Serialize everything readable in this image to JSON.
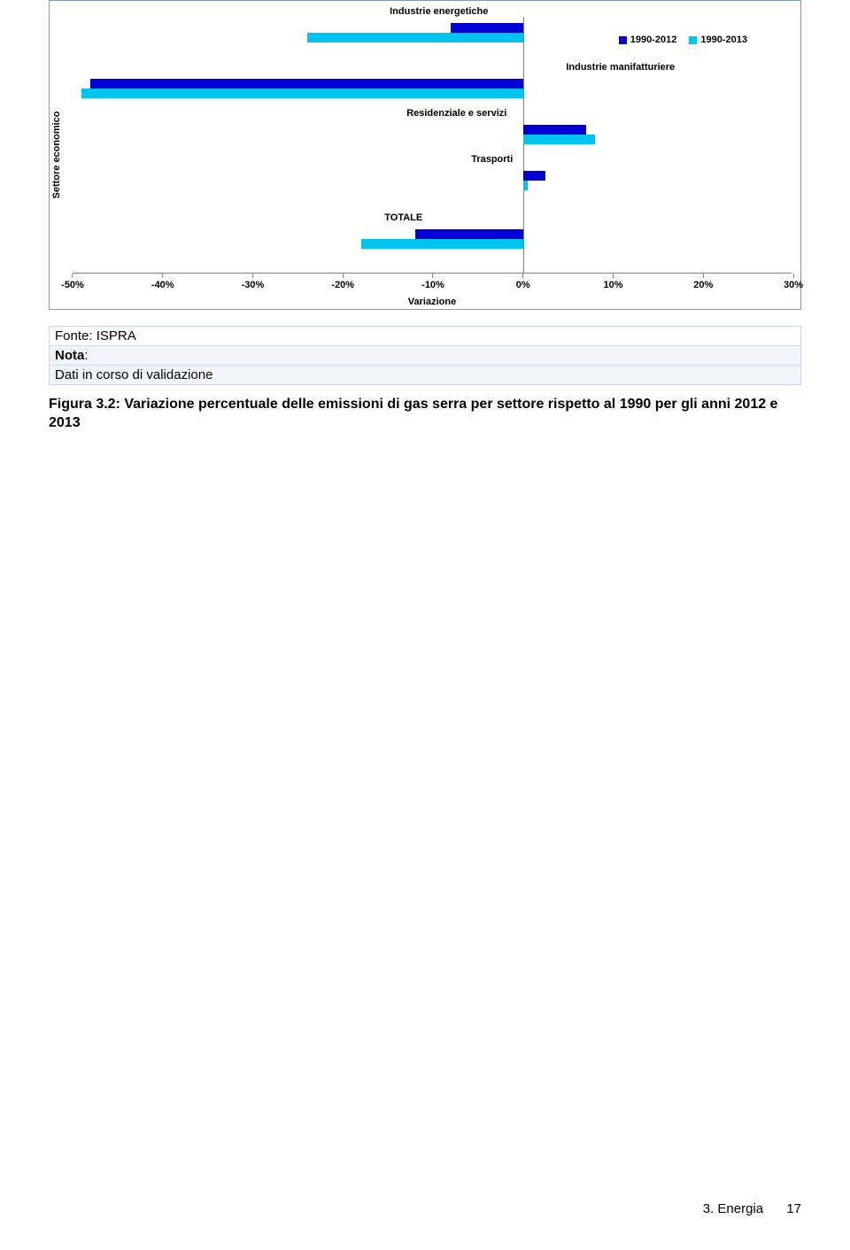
{
  "chart": {
    "type": "grouped-horizontal-bar",
    "y_axis_label": "Settore economico",
    "x_axis_label": "Variazione",
    "x_min": -50,
    "x_max": 30,
    "x_ticks": [
      "-50%",
      "-40%",
      "-30%",
      "-20%",
      "-10%",
      "0%",
      "10%",
      "20%",
      "30%"
    ],
    "x_tick_values": [
      -50,
      -40,
      -30,
      -20,
      -10,
      0,
      10,
      20,
      30
    ],
    "legend": [
      {
        "label": "1990-2012",
        "color": "#0000d6"
      },
      {
        "label": "1990-2013",
        "color": "#00c4f0"
      }
    ],
    "series_colors": {
      "a": "#0000d6",
      "b": "#00c4f0"
    },
    "categories": [
      {
        "label": "Industrie energetiche",
        "a_start": -8,
        "a_end": 0,
        "b_start": -24,
        "b_end": 0
      },
      {
        "label": "Industrie manifatturiere",
        "a_start": -48,
        "a_end": 0,
        "b_start": -49,
        "b_end": 0
      },
      {
        "label": "Residenziale e servizi",
        "a_start": 0,
        "a_end": 7,
        "b_start": 0,
        "b_end": 8
      },
      {
        "label": "Trasporti",
        "a_start": 0,
        "a_end": 2.5,
        "b_start": 0,
        "b_end": 0.5
      },
      {
        "label": "TOTALE",
        "a_start": -12,
        "a_end": 0,
        "b_start": -18,
        "b_end": 0
      }
    ],
    "category_row_top_pct": [
      0,
      22,
      40,
      58,
      81
    ],
    "label_font_size_pt": 8,
    "border_color": "#7c9bc0",
    "tick_color": "#808080",
    "background_color": "#ffffff"
  },
  "meta": {
    "source_label": "Fonte: ISPRA",
    "note_label": "Nota",
    "note_colon": ":",
    "note_body": "Dati in corso di validazione"
  },
  "caption": {
    "prefix": "Figura 3.2: ",
    "body": "Variazione percentuale delle emissioni di gas serra per settore rispetto al 1990 per gli anni 2012 e 2013"
  },
  "footer": {
    "section": "3. Energia",
    "page": "17"
  }
}
